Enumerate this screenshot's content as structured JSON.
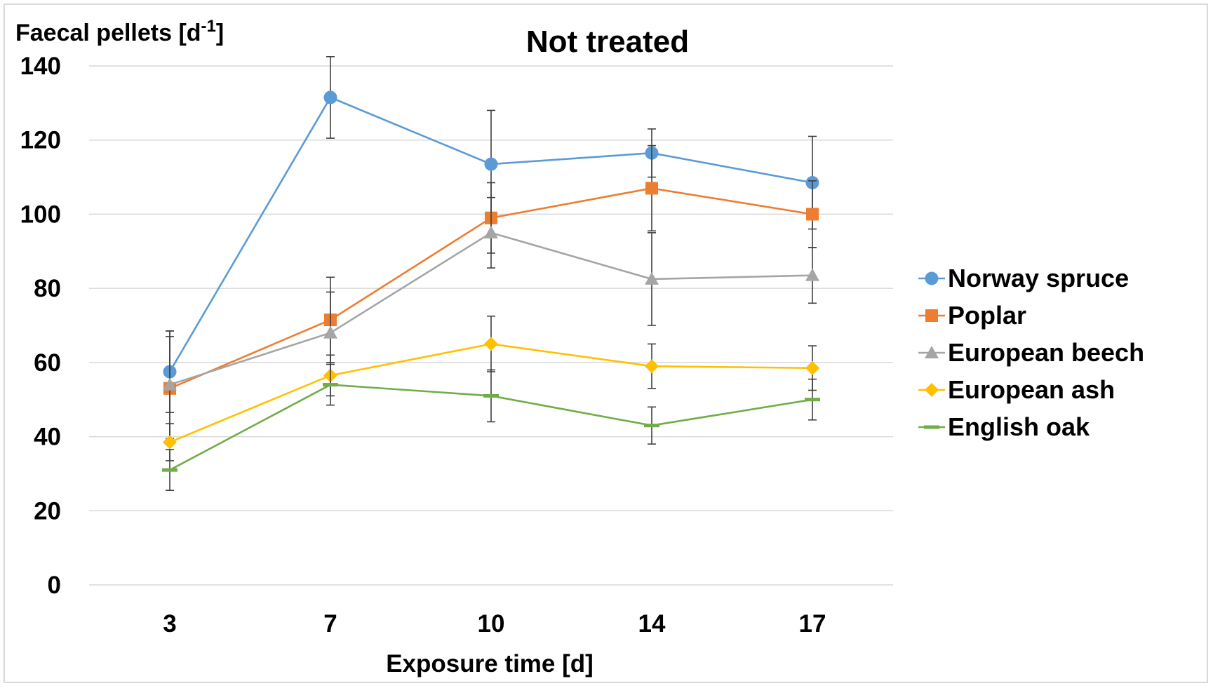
{
  "chart_data": {
    "type": "line",
    "title": "Not treated",
    "ylabel": "Faecal pellets [d",
    "ylabel_sup": "-1",
    "ylabel_end": "]",
    "xlabel": "Exposure time [d]",
    "categories": [
      "3",
      "7",
      "10",
      "14",
      "17"
    ],
    "ylim": [
      0,
      140
    ],
    "yticks": [
      0,
      20,
      40,
      60,
      80,
      100,
      120,
      140
    ],
    "grid": true,
    "legend_position": "right",
    "series": [
      {
        "name": "Norway spruce",
        "color": "#5b9bd5",
        "marker": "circle",
        "values": [
          57.5,
          131.5,
          113.5,
          116.5,
          108.5
        ],
        "errors": [
          11,
          11,
          14.5,
          6.5,
          12.5
        ]
      },
      {
        "name": "Poplar",
        "color": "#ed7d31",
        "marker": "square",
        "values": [
          53,
          71.5,
          99,
          107,
          100
        ],
        "errors": [
          14,
          11.5,
          9.5,
          11.5,
          9
        ]
      },
      {
        "name": "European beech",
        "color": "#a5a5a5",
        "marker": "triangle",
        "values": [
          54,
          68,
          95,
          82.5,
          83.5
        ],
        "errors": [
          14.5,
          11,
          9.5,
          12.5,
          7.5
        ]
      },
      {
        "name": "European ash",
        "color": "#ffc000",
        "marker": "diamond",
        "values": [
          38.5,
          56.5,
          65,
          59,
          58.5
        ],
        "errors": [
          5,
          5.5,
          7.5,
          6,
          6
        ]
      },
      {
        "name": "English oak",
        "color": "#70ad47",
        "marker": "dash",
        "values": [
          31,
          54,
          51,
          43,
          50
        ],
        "errors": [
          5.5,
          5.5,
          7,
          5,
          5.5
        ]
      }
    ]
  }
}
